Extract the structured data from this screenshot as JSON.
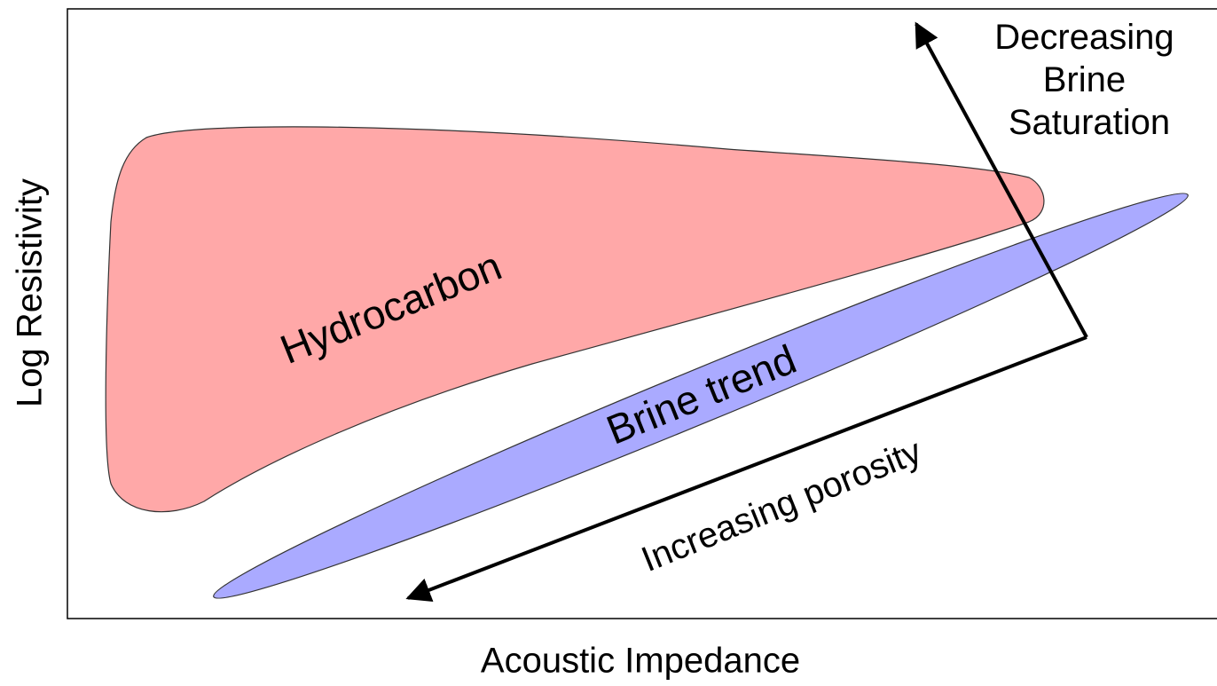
{
  "axes": {
    "x_label": "Acoustic Impedance",
    "y_label": "Log Resistivity"
  },
  "regions": [
    {
      "label": "Hydrocarbon"
    },
    {
      "label": "Brine trend"
    }
  ],
  "arrows": [
    {
      "label": "Increasing porosity"
    },
    {
      "label_lines": [
        "Decreasing",
        "Brine",
        "Saturation"
      ]
    }
  ]
}
